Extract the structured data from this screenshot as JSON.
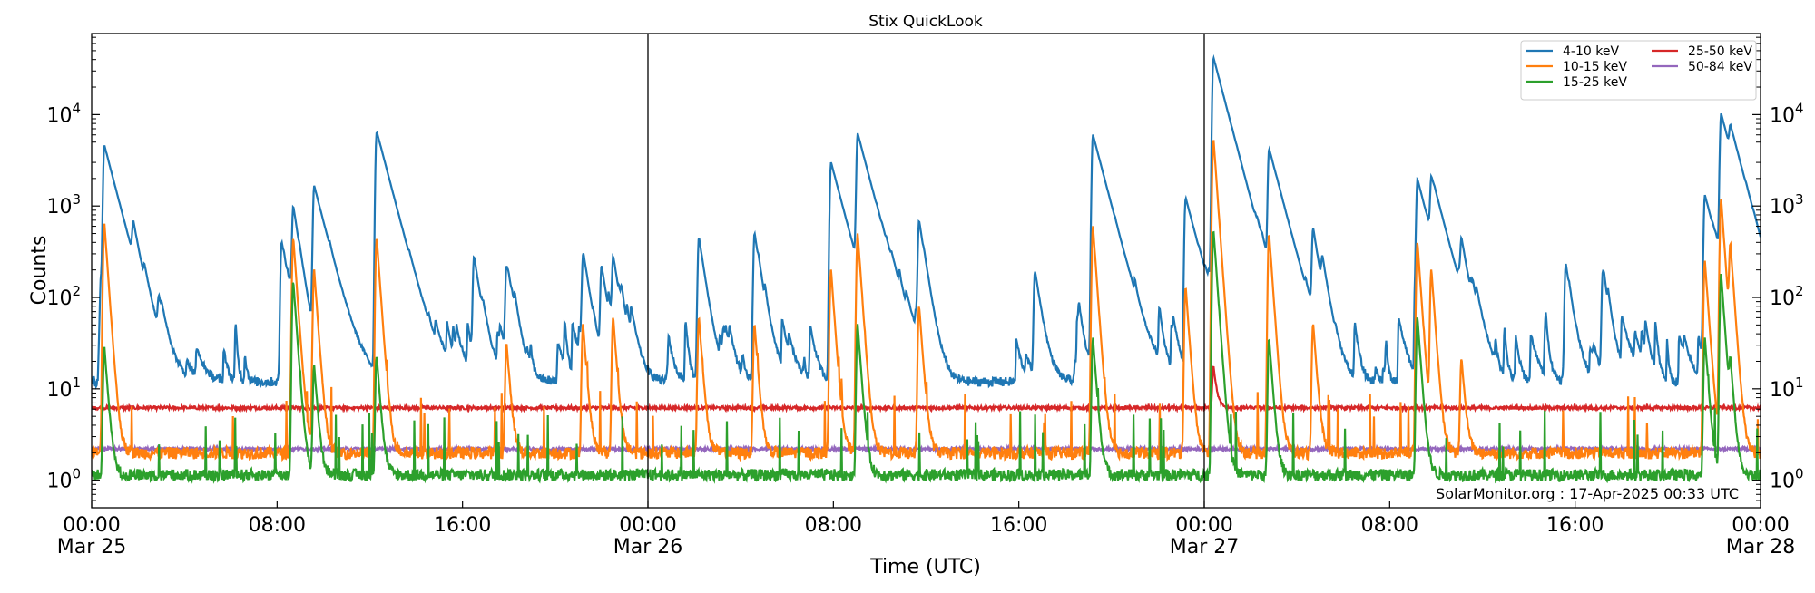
{
  "chart_data": {
    "type": "line",
    "title": "Stix QuickLook",
    "xlabel": "Time (UTC)",
    "ylabel": "Counts",
    "y_scale": "log",
    "ylim": [
      0.5,
      77000
    ],
    "xlim": [
      "2025-03-25 00:00",
      "2025-03-28 00:00"
    ],
    "x_ticks": [
      {
        "time": "00:00",
        "date": "Mar 25",
        "hour": 0
      },
      {
        "time": "08:00",
        "date": "",
        "hour": 8
      },
      {
        "time": "16:00",
        "date": "",
        "hour": 16
      },
      {
        "time": "00:00",
        "date": "Mar 26",
        "hour": 24
      },
      {
        "time": "08:00",
        "date": "",
        "hour": 32
      },
      {
        "time": "16:00",
        "date": "",
        "hour": 40
      },
      {
        "time": "00:00",
        "date": "Mar 27",
        "hour": 48
      },
      {
        "time": "08:00",
        "date": "",
        "hour": 56
      },
      {
        "time": "16:00",
        "date": "",
        "hour": 64
      },
      {
        "time": "00:00",
        "date": "Mar 28",
        "hour": 72
      }
    ],
    "y_ticks": [
      {
        "base": "10",
        "exp": "0",
        "value": 1
      },
      {
        "base": "10",
        "exp": "1",
        "value": 10
      },
      {
        "base": "10",
        "exp": "2",
        "value": 100
      },
      {
        "base": "10",
        "exp": "3",
        "value": 1000
      },
      {
        "base": "10",
        "exp": "4",
        "value": 10000
      }
    ],
    "day_boundaries_hours": [
      24,
      48
    ],
    "legend_placement": "top-right",
    "grid": false,
    "annotation": "SolarMonitor.org : 17-Apr-2025 00:33 UTC",
    "series": [
      {
        "name": "4-10 keV",
        "color": "#1f77b4",
        "baseline": 12,
        "peaks": [
          [
            0.4,
            120
          ],
          [
            0.55,
            4500
          ],
          [
            1.8,
            400
          ],
          [
            2.9,
            60
          ],
          [
            8.2,
            400
          ],
          [
            8.7,
            900
          ],
          [
            9.6,
            1600
          ],
          [
            12.3,
            6500
          ],
          [
            16.5,
            260
          ],
          [
            17.9,
            200
          ],
          [
            21.2,
            260
          ],
          [
            22.0,
            200
          ],
          [
            22.5,
            220
          ],
          [
            26.2,
            450
          ],
          [
            28.6,
            500
          ],
          [
            31.9,
            3000
          ],
          [
            33.05,
            6000
          ],
          [
            35.7,
            650
          ],
          [
            40.7,
            180
          ],
          [
            43.2,
            6000
          ],
          [
            47.2,
            1200
          ],
          [
            48.4,
            42000
          ],
          [
            50.8,
            4000
          ],
          [
            52.7,
            500
          ],
          [
            53.1,
            150
          ],
          [
            57.2,
            1900
          ],
          [
            57.8,
            1600
          ],
          [
            59.1,
            300
          ],
          [
            63.6,
            220
          ],
          [
            65.2,
            180
          ],
          [
            69.6,
            1300
          ],
          [
            70.3,
            10000
          ],
          [
            70.7,
            3500
          ]
        ]
      },
      {
        "name": "10-15 keV",
        "color": "#ff7f0e",
        "baseline": 2,
        "peaks": [
          [
            0.55,
            650
          ],
          [
            8.7,
            450
          ],
          [
            9.6,
            200
          ],
          [
            12.3,
            450
          ],
          [
            17.9,
            30
          ],
          [
            21.2,
            50
          ],
          [
            22.5,
            60
          ],
          [
            26.2,
            60
          ],
          [
            28.6,
            50
          ],
          [
            31.9,
            200
          ],
          [
            33.05,
            500
          ],
          [
            35.7,
            80
          ],
          [
            43.2,
            600
          ],
          [
            47.2,
            130
          ],
          [
            48.4,
            5500
          ],
          [
            50.8,
            500
          ],
          [
            52.7,
            50
          ],
          [
            57.2,
            400
          ],
          [
            57.8,
            200
          ],
          [
            59.1,
            20
          ],
          [
            69.6,
            250
          ],
          [
            70.3,
            1200
          ],
          [
            70.7,
            350
          ]
        ]
      },
      {
        "name": "15-25 keV",
        "color": "#2ca02c",
        "baseline": 1.15,
        "peaks": [
          [
            0.55,
            28
          ],
          [
            8.7,
            150
          ],
          [
            9.6,
            17
          ],
          [
            12.3,
            22
          ],
          [
            33.05,
            50
          ],
          [
            43.2,
            35
          ],
          [
            48.4,
            550
          ],
          [
            50.8,
            35
          ],
          [
            57.2,
            60
          ],
          [
            69.6,
            35
          ],
          [
            70.3,
            180
          ],
          [
            70.7,
            15
          ]
        ]
      },
      {
        "name": "25-50 keV",
        "color": "#d62728",
        "baseline": 6.2,
        "peaks": [
          [
            48.4,
            12
          ]
        ]
      },
      {
        "name": "50-84 keV",
        "color": "#9467bd",
        "baseline": 2.2,
        "peaks": []
      }
    ]
  }
}
